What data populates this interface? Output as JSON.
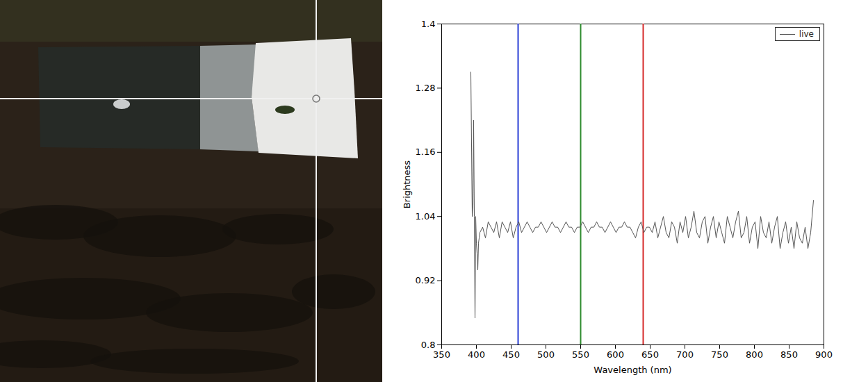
{
  "chart_data": {
    "type": "line",
    "x_label": "Wavelength (nm)",
    "y_label": "Brightness",
    "xlim": [
      350,
      900
    ],
    "xticks": [
      350,
      400,
      450,
      500,
      550,
      600,
      650,
      700,
      750,
      800,
      850,
      900
    ],
    "ylim": [
      0.8,
      1.4
    ],
    "yticks": [
      0.8,
      0.92,
      1.04,
      1.16,
      1.28,
      1.4
    ],
    "grid": false,
    "legend": "upper right",
    "vlines": [
      {
        "x": 460,
        "color": "#2a3fd6"
      },
      {
        "x": 550,
        "color": "#2e8b2e"
      },
      {
        "x": 640,
        "color": "#d62a2a"
      }
    ],
    "x": [
      392,
      394,
      395,
      396,
      397,
      398,
      399,
      400,
      401,
      402,
      403,
      404,
      405,
      409,
      413,
      417,
      421,
      425,
      429,
      433,
      437,
      441,
      445,
      449,
      453,
      457,
      461,
      465,
      469,
      473,
      477,
      481,
      485,
      489,
      493,
      497,
      501,
      505,
      509,
      513,
      517,
      521,
      525,
      529,
      533,
      537,
      541,
      545,
      549,
      553,
      557,
      561,
      565,
      569,
      573,
      577,
      581,
      585,
      589,
      593,
      597,
      601,
      605,
      609,
      613,
      617,
      621,
      625,
      629,
      633,
      637,
      641,
      645,
      649,
      653,
      657,
      661,
      665,
      669,
      673,
      677,
      681,
      685,
      689,
      693,
      697,
      701,
      705,
      709,
      713,
      717,
      721,
      725,
      729,
      733,
      737,
      741,
      745,
      749,
      753,
      757,
      761,
      765,
      769,
      773,
      777,
      781,
      785,
      789,
      793,
      797,
      801,
      805,
      809,
      813,
      817,
      821,
      825,
      829,
      833,
      837,
      841,
      845,
      849,
      853,
      857,
      861,
      865,
      869,
      873,
      877,
      881,
      885
    ],
    "series": [
      {
        "name": "live",
        "color": "#555555",
        "values": [
          1.31,
          1.04,
          1.06,
          1.22,
          1.04,
          0.85,
          1.04,
          0.99,
          0.97,
          0.94,
          0.99,
          1.0,
          1.01,
          1.02,
          1.0,
          1.03,
          1.02,
          1.01,
          1.03,
          1.0,
          1.03,
          1.02,
          1.01,
          1.03,
          1.0,
          1.02,
          1.03,
          1.01,
          1.02,
          1.03,
          1.02,
          1.01,
          1.02,
          1.02,
          1.03,
          1.02,
          1.01,
          1.02,
          1.03,
          1.02,
          1.02,
          1.01,
          1.02,
          1.03,
          1.02,
          1.02,
          1.01,
          1.02,
          1.02,
          1.03,
          1.02,
          1.01,
          1.02,
          1.02,
          1.03,
          1.02,
          1.02,
          1.01,
          1.02,
          1.03,
          1.02,
          1.01,
          1.02,
          1.02,
          1.03,
          1.02,
          1.02,
          1.01,
          1.0,
          1.02,
          1.03,
          1.01,
          1.02,
          1.02,
          1.01,
          1.03,
          1.0,
          1.02,
          1.04,
          1.01,
          1.0,
          1.03,
          1.02,
          0.99,
          1.03,
          1.01,
          1.04,
          1.0,
          1.02,
          1.05,
          1.01,
          1.0,
          1.03,
          1.04,
          0.99,
          1.02,
          1.04,
          1.0,
          1.03,
          1.01,
          0.99,
          1.04,
          1.02,
          1.0,
          1.03,
          1.05,
          1.0,
          1.01,
          1.04,
          0.99,
          1.02,
          1.03,
          0.98,
          1.04,
          1.01,
          1.0,
          1.03,
          0.99,
          1.02,
          1.04,
          0.98,
          1.01,
          1.03,
          0.99,
          1.02,
          0.98,
          1.03,
          1.0,
          0.99,
          1.02,
          0.98,
          1.01,
          1.07
        ]
      }
    ]
  }
}
